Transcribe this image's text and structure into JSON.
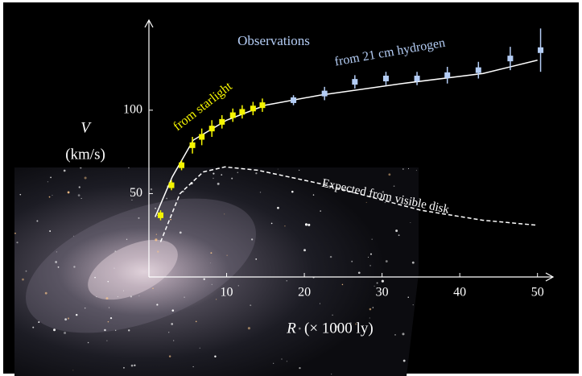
{
  "chart_data": {
    "type": "scatter",
    "xlabel": "R",
    "xlabel_unit": "(× 1000 ly)",
    "ylabel": "V",
    "ylabel_unit": "(km/s)",
    "xlim": [
      0,
      52
    ],
    "ylim": [
      0,
      154
    ],
    "xticks": [
      10,
      20,
      30,
      40,
      50
    ],
    "yticks": [
      50,
      100
    ],
    "annotations": [
      "Observations"
    ],
    "series": [
      {
        "name": "from starlight",
        "color": "#f5f500",
        "x": [
          1.5,
          2.9,
          4.2,
          5.6,
          6.8,
          8.1,
          9.4,
          10.8,
          12,
          13.4,
          14.6
        ],
        "values": [
          37,
          55,
          67,
          79,
          84,
          89,
          93,
          97,
          99,
          101,
          103
        ],
        "errors": [
          3,
          3,
          3,
          5,
          5,
          5,
          4,
          4,
          4,
          4,
          4
        ]
      },
      {
        "name": "from 21 cm hydrogen",
        "color": "#b4cdf5",
        "x": [
          18.6,
          22.6,
          26.5,
          30.5,
          34.5,
          38.4,
          42.4,
          46.5,
          50.4
        ],
        "values": [
          106,
          110,
          117,
          119,
          119,
          121,
          124,
          131,
          136
        ],
        "errors": [
          3,
          4,
          4,
          4,
          4,
          5,
          5,
          7,
          13
        ]
      }
    ],
    "lines": [
      {
        "color": "#ffffff",
        "style": "solid",
        "x": [
          0.8,
          3,
          5.7,
          10,
          15,
          22,
          32.6,
          43,
          50
        ],
        "values": [
          36,
          60,
          82,
          94,
          103,
          109,
          116,
          122,
          130
        ]
      },
      {
        "name": "Expected from visible disk",
        "color": "#ffffff",
        "style": "dashed",
        "x": [
          1.5,
          4,
          7,
          9.8,
          14,
          22,
          35,
          43,
          50
        ],
        "values": [
          21,
          50,
          63,
          66,
          64,
          56,
          40,
          34,
          31
        ]
      }
    ]
  }
}
